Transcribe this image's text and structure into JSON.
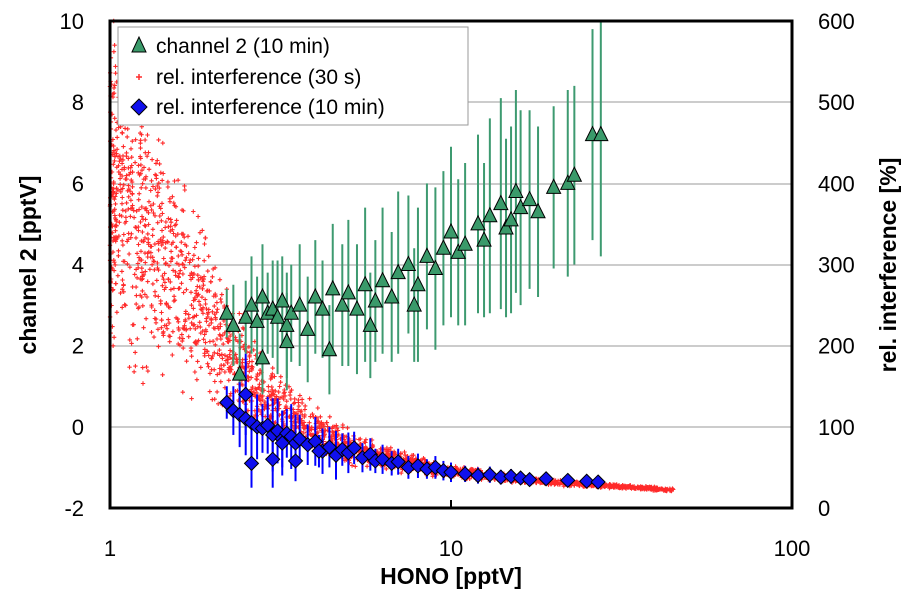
{
  "chart_data": {
    "type": "scatter",
    "title": "",
    "xlabel": "HONO [pptV]",
    "ylabel": "channel 2 [pptV]",
    "y2label": "rel. interference [%]",
    "x_scale": "log",
    "xlim": [
      1,
      100
    ],
    "ylim": [
      -2,
      10
    ],
    "y2lim": [
      0,
      600
    ],
    "x_ticks": [
      "1",
      "10",
      "100"
    ],
    "y_ticks": [
      "-2",
      "0",
      "2",
      "4",
      "6",
      "8",
      "10"
    ],
    "y2_ticks": [
      "0",
      "100",
      "200",
      "300",
      "400",
      "500",
      "600"
    ],
    "grid": "horizontal",
    "legend_position": "top-left",
    "colors": {
      "channel2_marker": "#3a9a6a",
      "channel2_errorbar": "#3d9a70",
      "interf30s": "#ff2a2a",
      "interf10min_marker": "#1010ee",
      "interf10min_errorbar": "#0000ff"
    },
    "series": [
      {
        "name": "channel 2 (10 min)",
        "axis": "left",
        "marker": "triangle",
        "x": [
          2.2,
          2.3,
          2.5,
          2.6,
          2.7,
          2.8,
          2.9,
          3.0,
          3.1,
          3.2,
          3.3,
          3.4,
          3.6,
          3.8,
          4.0,
          4.2,
          4.5,
          4.8,
          5.0,
          5.3,
          5.6,
          6.0,
          6.3,
          6.7,
          7.0,
          7.5,
          8.0,
          8.5,
          9.0,
          9.5,
          10.0,
          10.5,
          11.0,
          12.0,
          12.5,
          13.0,
          14.0,
          14.5,
          15.0,
          15.5,
          16.0,
          17.0,
          18.0,
          20.0,
          22.0,
          23.0,
          26.0,
          27.5,
          2.4,
          2.8,
          3.3,
          4.4,
          5.8,
          7.8
        ],
        "y": [
          2.8,
          2.5,
          2.7,
          3.0,
          2.6,
          3.2,
          2.8,
          2.9,
          2.7,
          3.1,
          2.5,
          2.8,
          3.0,
          2.4,
          3.2,
          2.9,
          3.4,
          3.0,
          3.3,
          2.9,
          3.5,
          3.1,
          3.6,
          3.2,
          3.8,
          4.0,
          3.5,
          4.2,
          3.9,
          4.4,
          4.8,
          4.3,
          4.5,
          5.0,
          4.6,
          5.2,
          5.5,
          4.9,
          5.1,
          5.8,
          5.4,
          5.6,
          5.3,
          5.9,
          6.0,
          6.2,
          7.2,
          7.2,
          1.3,
          1.7,
          2.1,
          1.9,
          2.5,
          3.0
        ],
        "yerr": [
          0.6,
          1.0,
          0.9,
          1.2,
          1.1,
          1.3,
          1.0,
          1.2,
          1.4,
          1.1,
          1.3,
          1.2,
          1.5,
          1.3,
          1.4,
          1.2,
          1.6,
          1.5,
          1.8,
          1.6,
          1.9,
          1.5,
          1.8,
          1.6,
          2.0,
          1.7,
          1.9,
          1.8,
          2.0,
          1.9,
          2.1,
          1.8,
          2.0,
          2.2,
          1.9,
          2.4,
          2.6,
          2.2,
          2.3,
          2.5,
          2.4,
          2.2,
          2.1,
          2.0,
          2.3,
          2.2,
          2.6,
          3.0,
          1.0,
          0.9,
          1.2,
          1.1,
          1.3,
          1.4
        ]
      },
      {
        "name": "rel. interference (30 s)",
        "axis": "right",
        "marker": "plus",
        "trend": [
          [
            1.0,
            400
          ],
          [
            1.2,
            360
          ],
          [
            1.5,
            300
          ],
          [
            2.0,
            220
          ],
          [
            2.5,
            165
          ],
          [
            3.0,
            130
          ],
          [
            4.0,
            95
          ],
          [
            5.0,
            75
          ],
          [
            7.0,
            58
          ],
          [
            10.0,
            45
          ],
          [
            15.0,
            37
          ],
          [
            20.0,
            32
          ],
          [
            30.0,
            27
          ],
          [
            45.0,
            22
          ]
        ],
        "spread_percent": [
          45,
          45,
          40,
          35,
          30,
          28,
          25,
          22,
          18,
          14,
          12,
          10,
          9,
          8
        ]
      },
      {
        "name": "rel. interference (10 min)",
        "axis": "right",
        "marker": "diamond",
        "x": [
          2.2,
          2.3,
          2.4,
          2.5,
          2.6,
          2.7,
          2.8,
          2.9,
          3.0,
          3.1,
          3.2,
          3.3,
          3.4,
          3.5,
          3.6,
          3.8,
          4.0,
          4.2,
          4.4,
          4.6,
          4.8,
          5.0,
          5.2,
          5.5,
          5.8,
          6.0,
          6.3,
          6.7,
          7.0,
          7.5,
          8.0,
          8.5,
          9.0,
          9.5,
          10.0,
          11.0,
          12.0,
          13.0,
          14.0,
          15.0,
          16.0,
          17.0,
          19.0,
          22.0,
          25.0,
          27.0,
          2.6,
          3.0,
          3.5,
          4.1,
          2.5,
          3.2
        ],
        "y": [
          130,
          120,
          115,
          110,
          105,
          100,
          98,
          102,
          90,
          95,
          85,
          92,
          88,
          80,
          85,
          78,
          82,
          70,
          75,
          65,
          72,
          68,
          74,
          62,
          66,
          58,
          60,
          55,
          57,
          50,
          52,
          48,
          50,
          46,
          44,
          42,
          40,
          41,
          38,
          39,
          37,
          35,
          36,
          34,
          33,
          32,
          55,
          60,
          58,
          70,
          140,
          80
        ],
        "yerr": [
          20,
          30,
          40,
          45,
          35,
          40,
          30,
          35,
          45,
          40,
          35,
          30,
          40,
          35,
          30,
          25,
          30,
          28,
          25,
          30,
          20,
          25,
          20,
          18,
          20,
          15,
          18,
          15,
          16,
          14,
          15,
          12,
          14,
          12,
          12,
          10,
          10,
          10,
          9,
          9,
          8,
          8,
          8,
          7,
          7,
          6,
          30,
          35,
          25,
          20,
          50,
          40
        ]
      }
    ]
  }
}
